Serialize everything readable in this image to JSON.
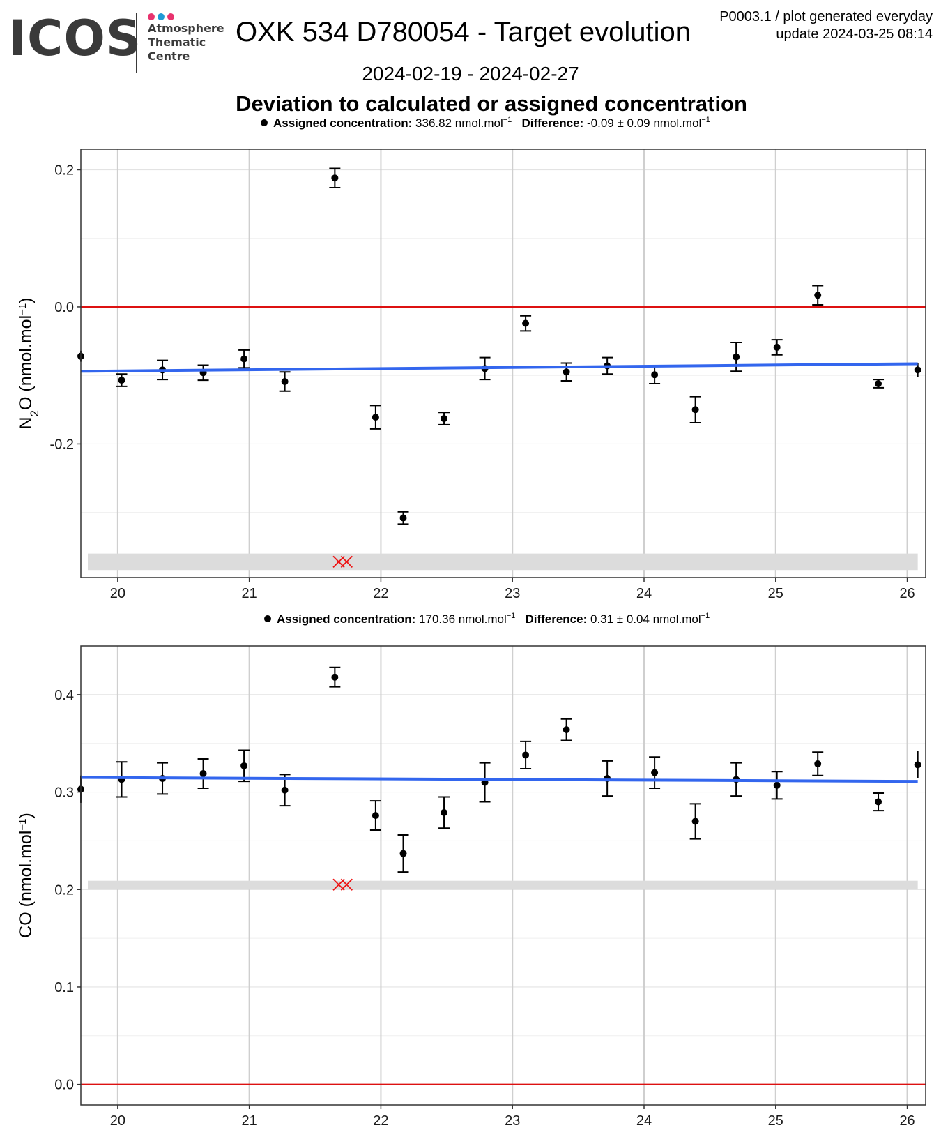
{
  "header": {
    "logo_text": "ICOS",
    "centre_lines": [
      "Atmosphere",
      "Thematic",
      "Centre"
    ],
    "title": "OXK 534 D780054 - Target evolution",
    "meta_line1": "P0003.1 / plot generated everyday",
    "meta_line2": "update  2024-03-25 08:14",
    "date_range": "2024-02-19 - 2024-02-27",
    "subtitle": "Deviation to calculated or assigned concentration"
  },
  "colors": {
    "trend": "#3366ee",
    "zero_line": "#dd1111",
    "flag_marker": "#ee1111",
    "band": "#dcdcdc",
    "logo_dots": [
      "#e8336e",
      "#1f9ad6",
      "#e8336e"
    ]
  },
  "chart_data": [
    {
      "type": "scatter",
      "legend": {
        "assigned_label": "Assigned concentration:",
        "assigned_value": "336.82 nmol.mol",
        "difference_label": "Difference:",
        "difference_value": "-0.09 ± 0.09 nmol.mol",
        "unit_exponent": "−1"
      },
      "ylabel": "N2O (nmol.mol-1)",
      "ylabel_main": "N",
      "ylabel_sub": "2",
      "ylabel_rest": "O (nmol.mol",
      "ylabel_sup": "−1",
      "ylabel_end": ")",
      "xlim": [
        19.72,
        26.14
      ],
      "ylim": [
        -0.395,
        0.23
      ],
      "x_ticks": [
        20,
        21,
        22,
        23,
        24,
        25,
        26
      ],
      "y_ticks": [
        -0.2,
        0.0,
        0.2
      ],
      "y_tick_labels": [
        "-0.2",
        "0.0",
        "0.2"
      ],
      "y_minor_grid": [
        -0.3,
        -0.1,
        0.1
      ],
      "grid": true,
      "zero_line": 0.0,
      "band": [
        -0.384,
        -0.36
      ],
      "flag_points": [
        {
          "x": 21.68,
          "y": -0.372
        },
        {
          "x": 21.74,
          "y": -0.372
        }
      ],
      "trend": {
        "x": [
          19.72,
          26.08
        ],
        "y": [
          -0.094,
          -0.083
        ]
      },
      "points": [
        {
          "x": 19.72,
          "y": -0.072,
          "err": 0.008
        },
        {
          "x": 20.03,
          "y": -0.107,
          "err": 0.009
        },
        {
          "x": 20.34,
          "y": -0.092,
          "err": 0.014
        },
        {
          "x": 20.65,
          "y": -0.096,
          "err": 0.011
        },
        {
          "x": 20.96,
          "y": -0.076,
          "err": 0.013
        },
        {
          "x": 21.27,
          "y": -0.109,
          "err": 0.014
        },
        {
          "x": 21.65,
          "y": 0.188,
          "err": 0.014
        },
        {
          "x": 21.96,
          "y": -0.161,
          "err": 0.017
        },
        {
          "x": 22.17,
          "y": -0.308,
          "err": 0.009
        },
        {
          "x": 22.48,
          "y": -0.163,
          "err": 0.009
        },
        {
          "x": 22.79,
          "y": -0.09,
          "err": 0.016
        },
        {
          "x": 23.1,
          "y": -0.024,
          "err": 0.011
        },
        {
          "x": 23.41,
          "y": -0.095,
          "err": 0.013
        },
        {
          "x": 23.72,
          "y": -0.086,
          "err": 0.012
        },
        {
          "x": 24.08,
          "y": -0.099,
          "err": 0.013
        },
        {
          "x": 24.39,
          "y": -0.15,
          "err": 0.019
        },
        {
          "x": 24.7,
          "y": -0.073,
          "err": 0.021
        },
        {
          "x": 25.01,
          "y": -0.059,
          "err": 0.011
        },
        {
          "x": 25.32,
          "y": 0.017,
          "err": 0.014
        },
        {
          "x": 25.78,
          "y": -0.112,
          "err": 0.006
        },
        {
          "x": 26.08,
          "y": -0.092,
          "err": 0.01
        }
      ]
    },
    {
      "type": "scatter",
      "legend": {
        "assigned_label": "Assigned concentration:",
        "assigned_value": "170.36 nmol.mol",
        "difference_label": "Difference:",
        "difference_value": "0.31 ± 0.04 nmol.mol",
        "unit_exponent": "−1"
      },
      "ylabel": "CO (nmol.mol-1)",
      "ylabel_main": "CO (nmol.mol",
      "ylabel_sub": "",
      "ylabel_rest": "",
      "ylabel_sup": "−1",
      "ylabel_end": ")",
      "xlim": [
        19.72,
        26.14
      ],
      "ylim": [
        -0.021,
        0.45
      ],
      "x_ticks": [
        20,
        21,
        22,
        23,
        24,
        25,
        26
      ],
      "y_ticks": [
        0.0,
        0.1,
        0.2,
        0.3,
        0.4
      ],
      "y_tick_labels": [
        "0.0",
        "0.1",
        "0.2",
        "0.3",
        "0.4"
      ],
      "y_minor_grid": [
        0.05,
        0.15,
        0.25,
        0.35
      ],
      "grid": true,
      "zero_line": 0.0,
      "band": [
        0.2,
        0.209
      ],
      "flag_points": [
        {
          "x": 21.68,
          "y": 0.205
        },
        {
          "x": 21.74,
          "y": 0.205
        }
      ],
      "trend": {
        "x": [
          19.72,
          26.08
        ],
        "y": [
          0.315,
          0.311
        ]
      },
      "points": [
        {
          "x": 19.72,
          "y": 0.303,
          "err": 0.014
        },
        {
          "x": 20.03,
          "y": 0.313,
          "err": 0.018
        },
        {
          "x": 20.34,
          "y": 0.314,
          "err": 0.016
        },
        {
          "x": 20.65,
          "y": 0.319,
          "err": 0.015
        },
        {
          "x": 20.96,
          "y": 0.327,
          "err": 0.016
        },
        {
          "x": 21.27,
          "y": 0.302,
          "err": 0.016
        },
        {
          "x": 21.65,
          "y": 0.418,
          "err": 0.01
        },
        {
          "x": 21.96,
          "y": 0.276,
          "err": 0.015
        },
        {
          "x": 22.17,
          "y": 0.237,
          "err": 0.019
        },
        {
          "x": 22.48,
          "y": 0.279,
          "err": 0.016
        },
        {
          "x": 22.79,
          "y": 0.31,
          "err": 0.02
        },
        {
          "x": 23.1,
          "y": 0.338,
          "err": 0.014
        },
        {
          "x": 23.41,
          "y": 0.364,
          "err": 0.011
        },
        {
          "x": 23.72,
          "y": 0.314,
          "err": 0.018
        },
        {
          "x": 24.08,
          "y": 0.32,
          "err": 0.016
        },
        {
          "x": 24.39,
          "y": 0.27,
          "err": 0.018
        },
        {
          "x": 24.7,
          "y": 0.313,
          "err": 0.017
        },
        {
          "x": 25.01,
          "y": 0.307,
          "err": 0.014
        },
        {
          "x": 25.32,
          "y": 0.329,
          "err": 0.012
        },
        {
          "x": 25.78,
          "y": 0.29,
          "err": 0.009
        },
        {
          "x": 26.08,
          "y": 0.328,
          "err": 0.014
        }
      ]
    }
  ]
}
